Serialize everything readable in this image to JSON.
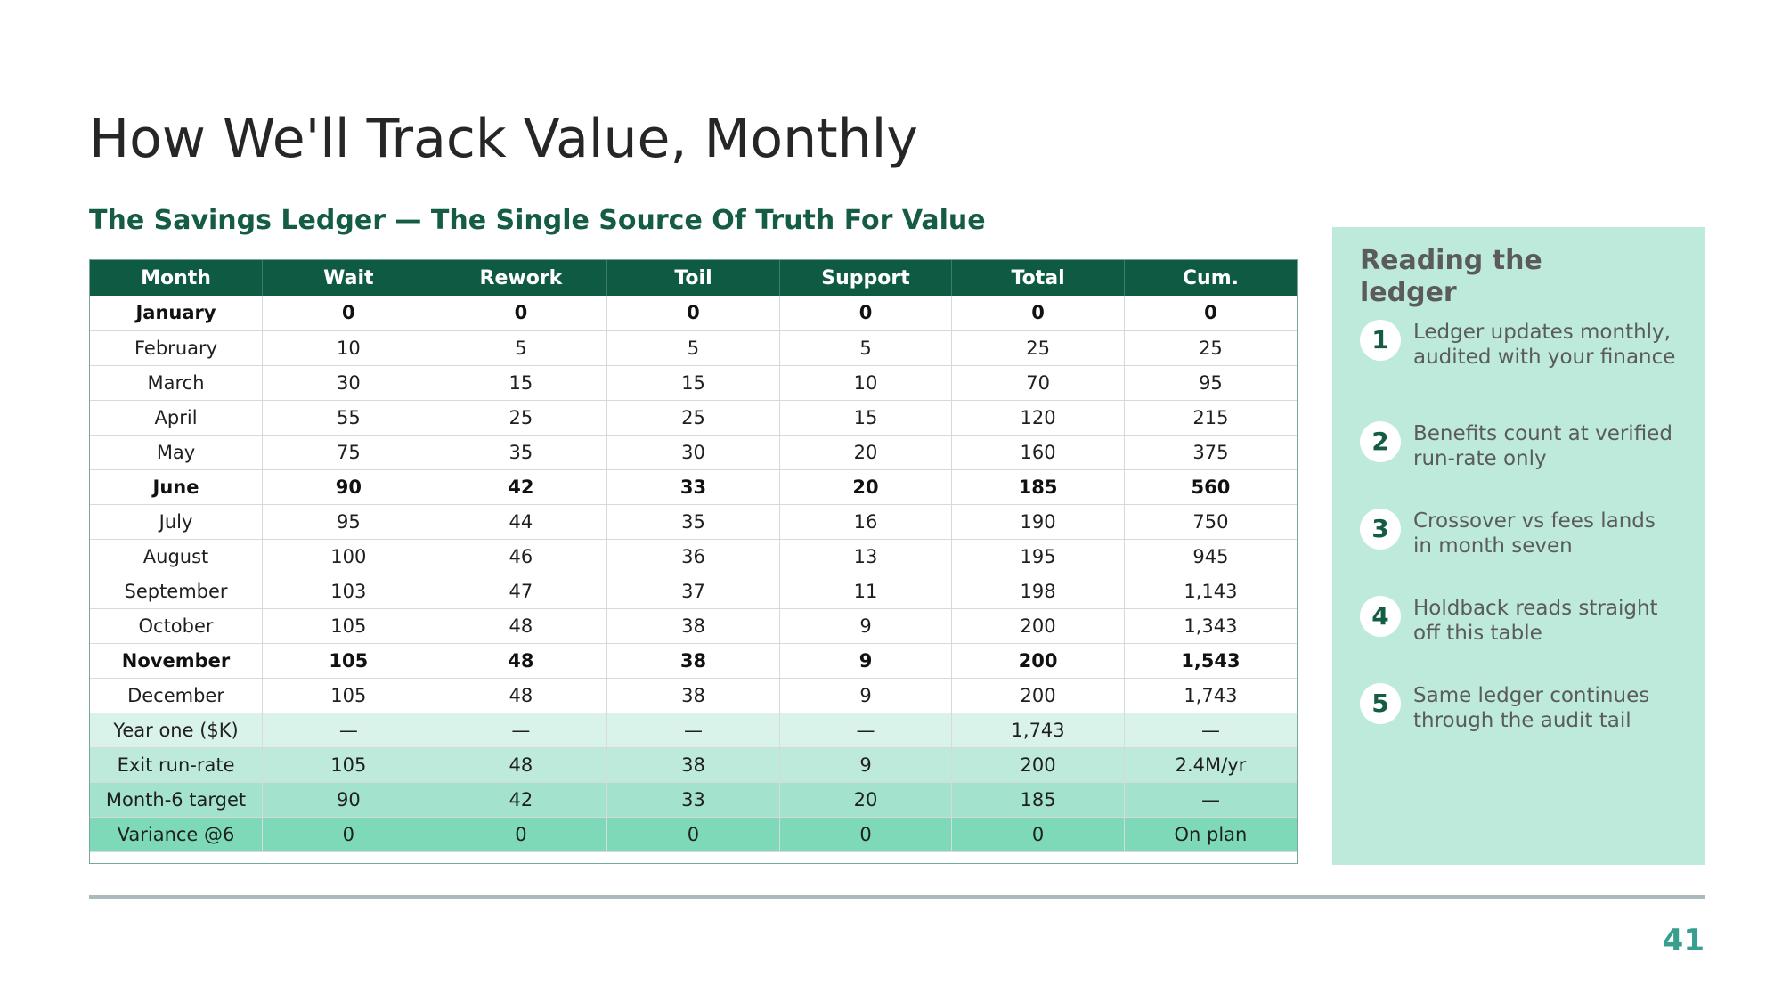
{
  "title": "How We'll Track Value, Monthly",
  "subtitle": "The Savings Ledger — The Single Source Of Truth For Value",
  "table": {
    "headers": [
      "Month",
      "Wait",
      "Rework",
      "Toil",
      "Support",
      "Total",
      "Cum."
    ],
    "rows": [
      {
        "cells": [
          "January",
          "0",
          "0",
          "0",
          "0",
          "0",
          "0"
        ],
        "bold": true,
        "tone": ""
      },
      {
        "cells": [
          "February",
          "10",
          "5",
          "5",
          "5",
          "25",
          "25"
        ],
        "bold": false,
        "tone": ""
      },
      {
        "cells": [
          "March",
          "30",
          "15",
          "15",
          "10",
          "70",
          "95"
        ],
        "bold": false,
        "tone": ""
      },
      {
        "cells": [
          "April",
          "55",
          "25",
          "25",
          "15",
          "120",
          "215"
        ],
        "bold": false,
        "tone": ""
      },
      {
        "cells": [
          "May",
          "75",
          "35",
          "30",
          "20",
          "160",
          "375"
        ],
        "bold": false,
        "tone": ""
      },
      {
        "cells": [
          "June",
          "90",
          "42",
          "33",
          "20",
          "185",
          "560"
        ],
        "bold": true,
        "tone": ""
      },
      {
        "cells": [
          "July",
          "95",
          "44",
          "35",
          "16",
          "190",
          "750"
        ],
        "bold": false,
        "tone": ""
      },
      {
        "cells": [
          "August",
          "100",
          "46",
          "36",
          "13",
          "195",
          "945"
        ],
        "bold": false,
        "tone": ""
      },
      {
        "cells": [
          "September",
          "103",
          "47",
          "37",
          "11",
          "198",
          "1,143"
        ],
        "bold": false,
        "tone": ""
      },
      {
        "cells": [
          "October",
          "105",
          "48",
          "38",
          "9",
          "200",
          "1,343"
        ],
        "bold": false,
        "tone": ""
      },
      {
        "cells": [
          "November",
          "105",
          "48",
          "38",
          "9",
          "200",
          "1,543"
        ],
        "bold": true,
        "tone": ""
      },
      {
        "cells": [
          "December",
          "105",
          "48",
          "38",
          "9",
          "200",
          "1,743"
        ],
        "bold": false,
        "tone": ""
      },
      {
        "cells": [
          "Year one ($K)",
          "—",
          "—",
          "—",
          "—",
          "1,743",
          "—"
        ],
        "bold": false,
        "tone": "sum1"
      },
      {
        "cells": [
          "Exit run-rate",
          "105",
          "48",
          "38",
          "9",
          "200",
          "2.4M/yr"
        ],
        "bold": false,
        "tone": "sum2"
      },
      {
        "cells": [
          "Month-6 target",
          "90",
          "42",
          "33",
          "20",
          "185",
          "—"
        ],
        "bold": false,
        "tone": "sum3"
      },
      {
        "cells": [
          "Variance @6",
          "0",
          "0",
          "0",
          "0",
          "0",
          "On plan"
        ],
        "bold": false,
        "tone": "sum4"
      }
    ]
  },
  "panel": {
    "title": "Reading the ledger",
    "steps": [
      {
        "num": "1",
        "text": "Ledger updates monthly, audited with your finance"
      },
      {
        "num": "2",
        "text": "Benefits count at verified run-rate only"
      },
      {
        "num": "3",
        "text": "Crossover vs fees lands in month seven"
      },
      {
        "num": "4",
        "text": "Holdback reads straight off this table"
      },
      {
        "num": "5",
        "text": "Same ledger continues through the audit tail"
      }
    ]
  },
  "page_number": "41",
  "colors": {
    "header_bg": "#0e5a42",
    "accent_text": "#145c45",
    "panel_bg": "#bdeadb",
    "page_number": "#3a9e8f"
  }
}
